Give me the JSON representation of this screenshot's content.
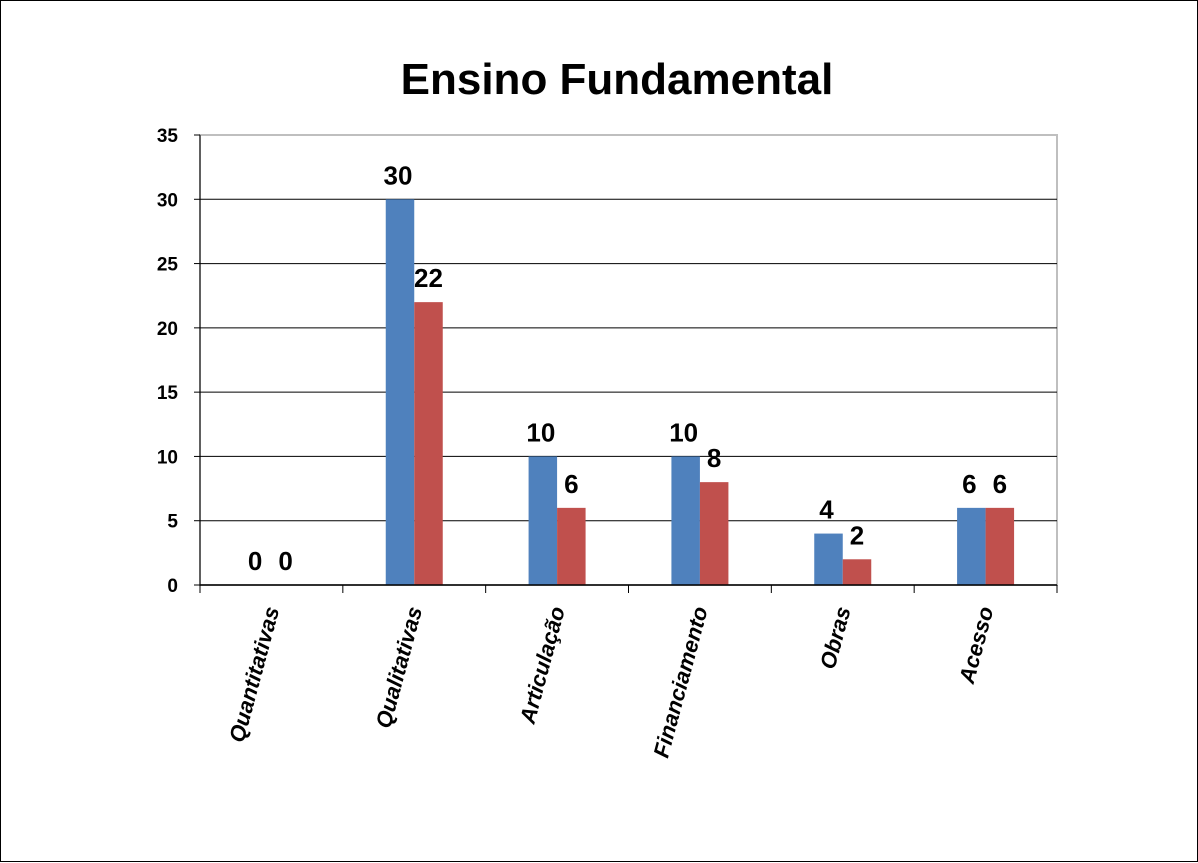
{
  "chart_data": {
    "type": "bar",
    "title": "Ensino Fundamental",
    "xlabel": "",
    "ylabel": "",
    "categories": [
      "Quantitativas",
      "Qualitativas",
      "Articulação",
      "Financiamento",
      "Obras",
      "Acesso"
    ],
    "series": [
      {
        "values": [
          0,
          30,
          10,
          10,
          4,
          6
        ],
        "color": "#4f81bd"
      },
      {
        "values": [
          0,
          22,
          6,
          8,
          2,
          6
        ],
        "color": "#c0504d"
      }
    ],
    "ylim": [
      0,
      35
    ],
    "yticks": [
      0,
      5,
      10,
      15,
      20,
      25,
      30,
      35
    ],
    "grid": true,
    "legend": "none",
    "data_labels": true
  }
}
